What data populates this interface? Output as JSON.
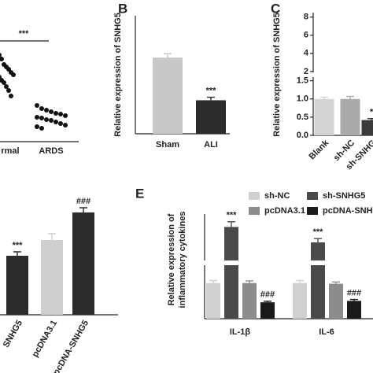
{
  "chart_data": [
    {
      "type": "scatter",
      "categories": [
        "rmal",
        "ARDS"
      ],
      "values": [
        [
          1.1,
          1.05,
          0.98,
          0.95,
          0.92,
          0.88,
          0.85,
          0.82,
          0.78,
          0.75,
          0.7,
          0.65,
          0.58
        ],
        [
          0.46,
          0.42,
          0.4,
          0.38,
          0.36,
          0.35,
          0.33,
          0.31,
          0.3,
          0.28,
          0.27,
          0.25,
          0.23,
          0.21,
          0.19,
          0.17
        ]
      ],
      "color": "#111111",
      "ylim": [
        0,
        1.6
      ],
      "annotation": "***"
    },
    {
      "type": "bar",
      "label": "B",
      "ylabel": [
        "Relative expression of SNHG5"
      ],
      "categories": [
        "Sham",
        "ALI"
      ],
      "values": [
        1.0,
        0.44
      ],
      "errors": [
        0.05,
        0.04
      ],
      "colors": [
        "#c8c8c8",
        "#2b2b2b"
      ],
      "annotations": [
        null,
        "***"
      ],
      "ylim": [
        0,
        1.55
      ]
    },
    {
      "type": "bar",
      "label": "C",
      "ylabel": [
        "Relative expression of SNHG5"
      ],
      "categories": [
        "Blank",
        "sh-NC",
        "sh-SNHG"
      ],
      "values": [
        1.0,
        1.0,
        0.42
      ],
      "errors": [
        0.05,
        0.07,
        0.04
      ],
      "colors": [
        "#d4d4d4",
        "#aaaaaa",
        "#3a3a3a"
      ],
      "annotations": [
        null,
        null,
        "*"
      ],
      "ylim": [
        0,
        8.5
      ],
      "axis_break": [
        1.6,
        1.9
      ],
      "yticks": [
        {
          "value": 0,
          "label": "0.0"
        },
        0.5,
        {
          "value": 1,
          "label": "1.0"
        },
        1.5,
        2,
        4,
        6,
        8
      ]
    },
    {
      "type": "bar",
      "categories": [
        "SNHG5",
        "pcDNA3.1",
        "pcDNA-SNHG5"
      ],
      "values": [
        0.75,
        0.95,
        1.3
      ],
      "errors": [
        0.05,
        0.08,
        0.06
      ],
      "colors": [
        "#2b2b2b",
        "#cfcfcf",
        "#2b2b2b"
      ],
      "annotations": [
        "***",
        null,
        "###"
      ],
      "ylim": [
        0,
        1.6
      ]
    },
    {
      "type": "grouped-bar",
      "label": "E",
      "ylabel": [
        "Relative expression of",
        "inflammatory cytokines"
      ],
      "categories": [
        "IL-1β",
        "IL-6"
      ],
      "ylim": [
        0,
        3.8
      ],
      "axis_break": [
        1.5,
        2
      ],
      "series": [
        {
          "name": "sh-NC",
          "color": "#d0d0d0",
          "values": [
            1.0,
            1.0
          ],
          "errors": [
            0.07,
            0.07
          ],
          "annotations": [
            null,
            null
          ]
        },
        {
          "name": "sh-SNHG5",
          "color": "#4a4a4a",
          "values": [
            3.3,
            2.7
          ],
          "errors": [
            0.2,
            0.15
          ],
          "annotations": [
            "***",
            "***"
          ]
        },
        {
          "name": "pcDNA3.1",
          "color": "#8c8c8c",
          "values": [
            1.0,
            0.98
          ],
          "errors": [
            0.06,
            0.05
          ],
          "annotations": [
            null,
            null
          ]
        },
        {
          "name": "pcDNA-SNHG",
          "color": "#1a1a1a",
          "values": [
            0.46,
            0.5
          ],
          "errors": [
            0.03,
            0.04
          ],
          "annotations": [
            "###",
            "###"
          ]
        }
      ]
    }
  ]
}
